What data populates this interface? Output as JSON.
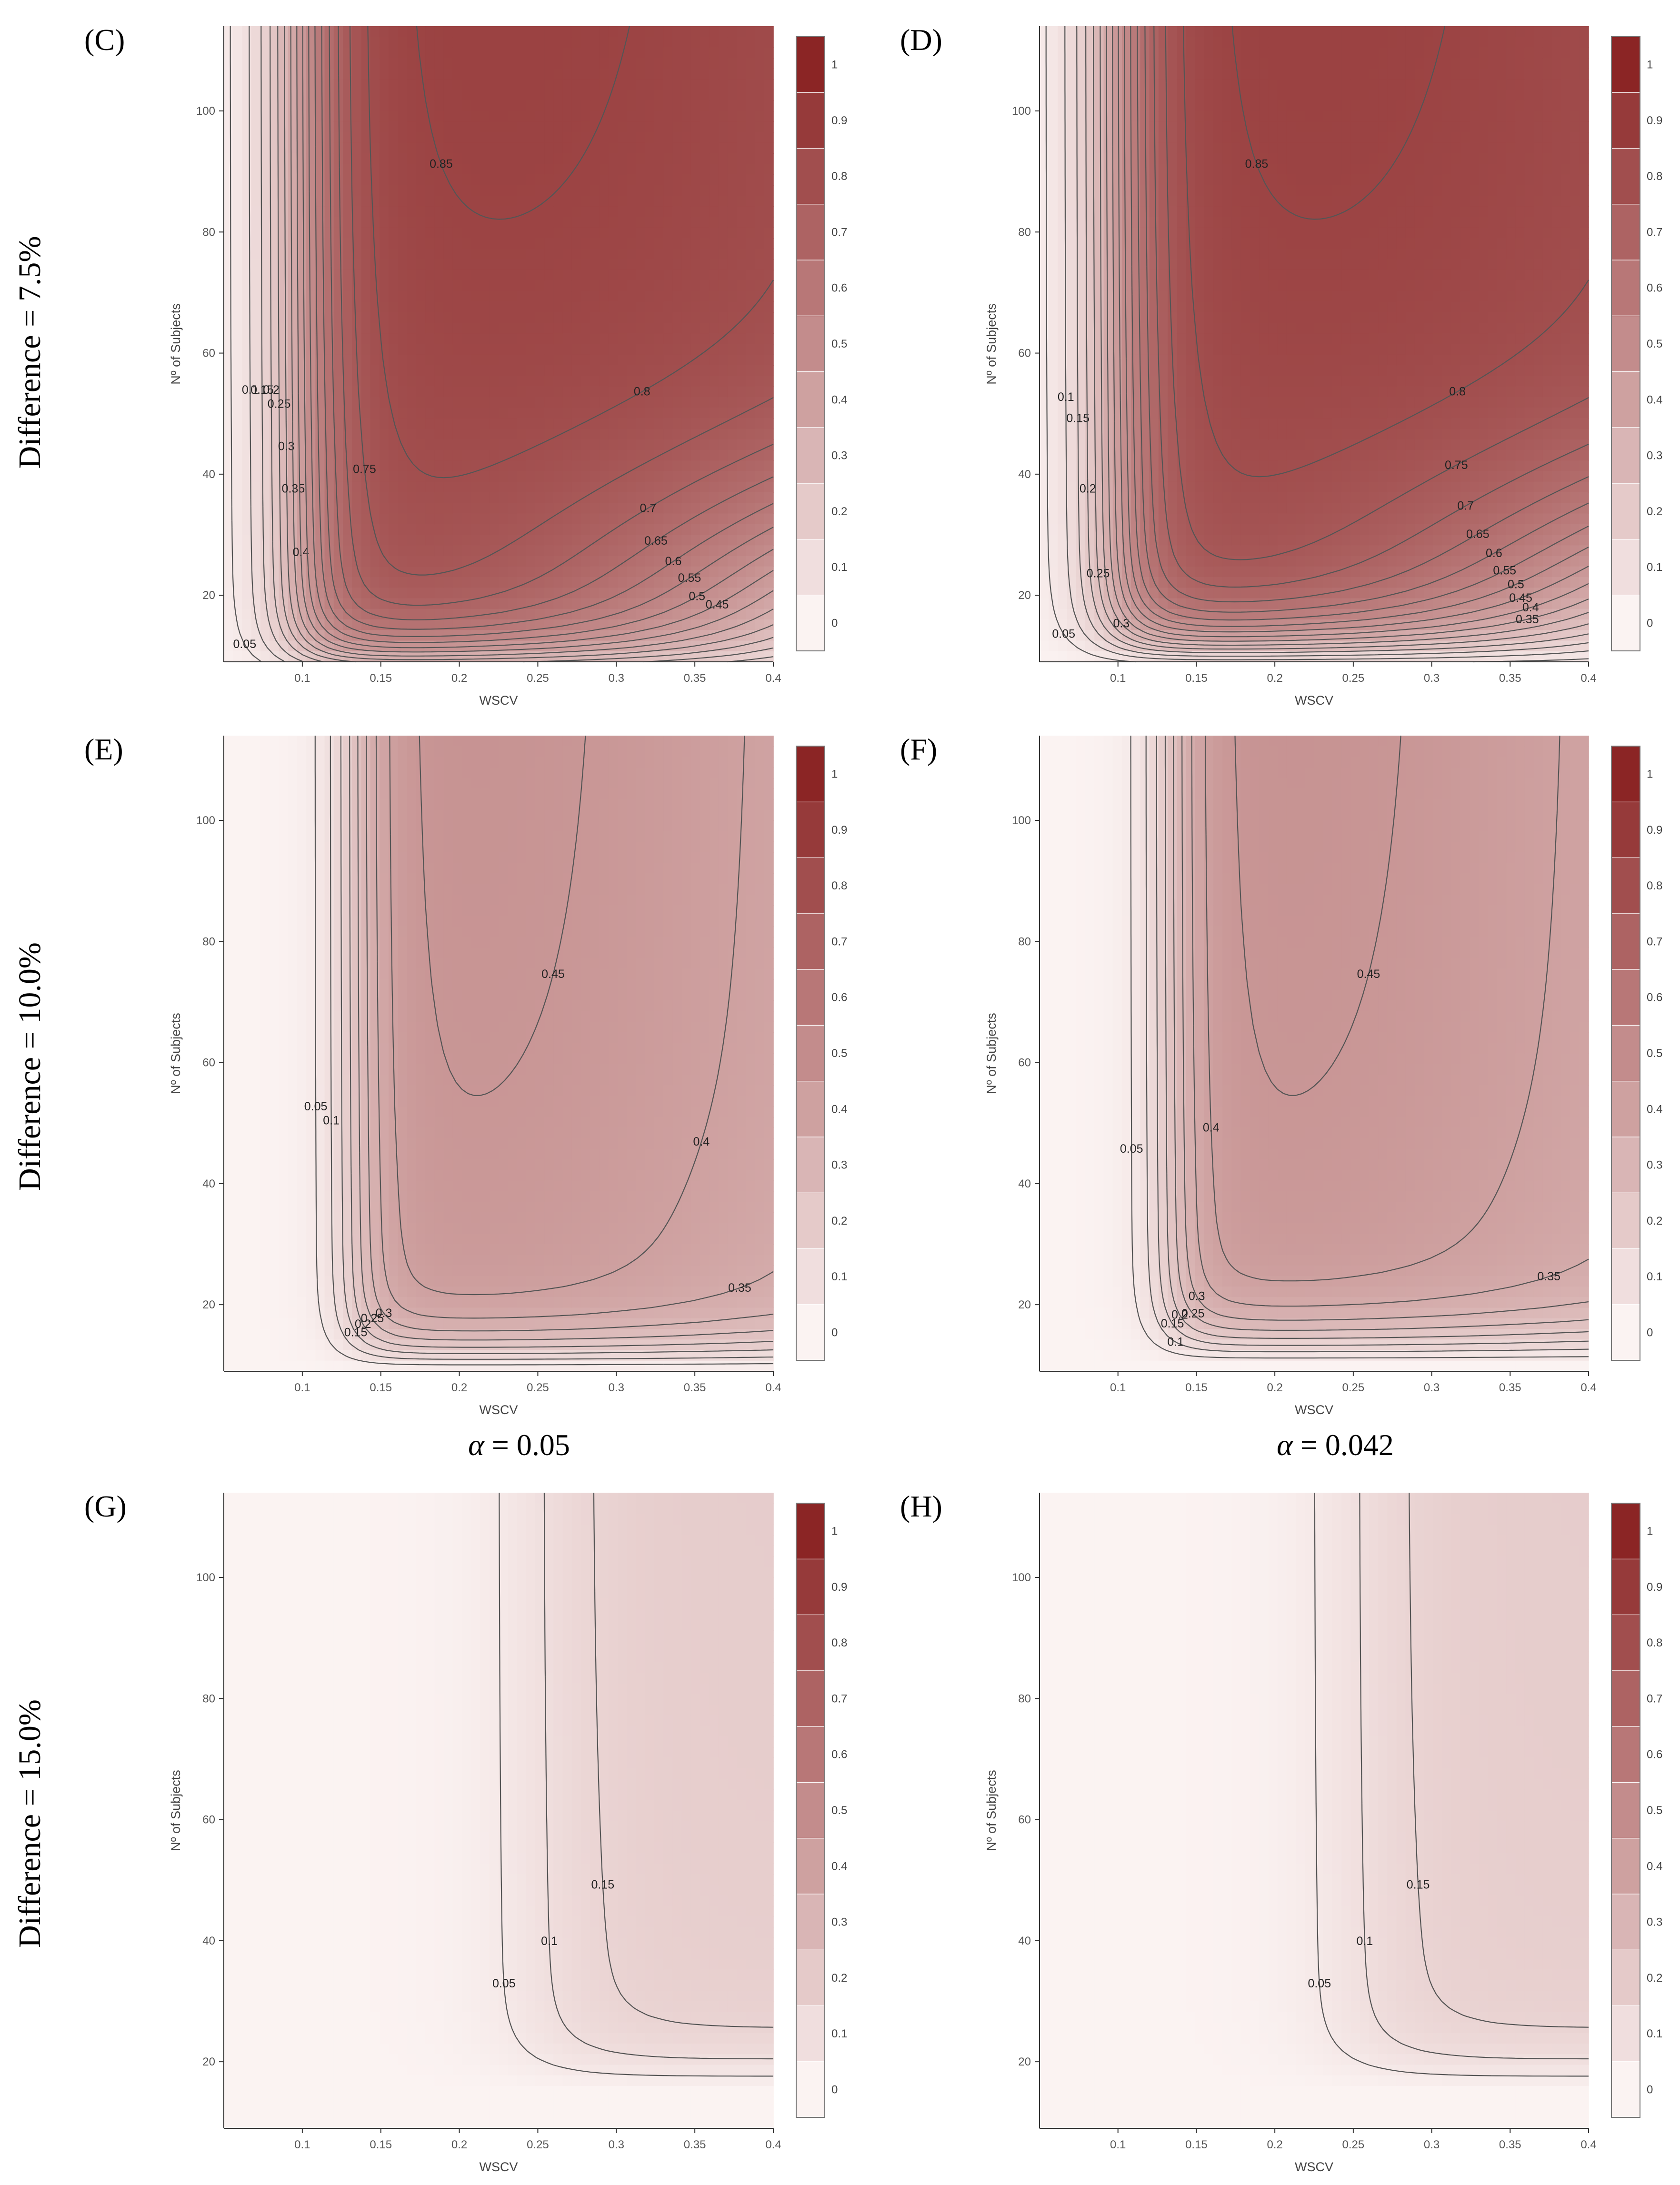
{
  "figure": {
    "row_labels": [
      "Difference = 7.5%",
      "Difference = 10.0%",
      "Difference = 15.0%"
    ],
    "alpha_labels": {
      "left": {
        "sym": "α",
        "text": " = 0.05"
      },
      "right": {
        "sym": "α",
        "text": " = 0.042"
      }
    }
  },
  "colors": {
    "low": "#fbf3f2",
    "high": "#8b2525",
    "contour": "#555555"
  },
  "colorbar": {
    "ticks": [
      "1",
      "0.9",
      "0.8",
      "0.7",
      "0.6",
      "0.5",
      "0.4",
      "0.3",
      "0.2",
      "0.1",
      "0"
    ]
  },
  "chart_data": [
    {
      "panel": "(C)",
      "letter": "C",
      "type": "heatmap",
      "xlabel": "WSCV",
      "ylabel": "Nº of Subjects",
      "xlim": [
        0.05,
        0.4
      ],
      "ylim": [
        9,
        114
      ],
      "xticks": [
        "0.1",
        "0.15",
        "0.2",
        "0.25",
        "0.3",
        "0.35",
        "0.4"
      ],
      "yticks": [
        "20",
        "40",
        "60",
        "80",
        "100"
      ],
      "colorbar_range": [
        0,
        1
      ],
      "params": {
        "A": 0.87,
        "N0": 6,
        "W0": 0.098,
        "s": 0.016,
        "p": 0.55,
        "c": 0.5,
        "Wo": 0.22,
        "q": 2.2,
        "sig": 0.45,
        "B": 0.95
      },
      "contour_levels": [
        "0.05",
        "0.1",
        "0.15",
        "0.2",
        "0.25",
        "0.3",
        "0.35",
        "0.4",
        "0.45",
        "0.5",
        "0.55",
        "0.6",
        "0.65",
        "0.7",
        "0.75",
        "0.8",
        "0.85"
      ]
    },
    {
      "panel": "(D)",
      "letter": "D",
      "type": "heatmap",
      "xlabel": "WSCV",
      "ylabel": "Nº of Subjects",
      "xlim": [
        0.05,
        0.4
      ],
      "ylim": [
        9,
        114
      ],
      "xticks": [
        "0.1",
        "0.15",
        "0.2",
        "0.25",
        "0.3",
        "0.35",
        "0.4"
      ],
      "yticks": [
        "20",
        "40",
        "60",
        "80",
        "100"
      ],
      "colorbar_range": [
        0,
        1
      ],
      "params": {
        "A": 0.87,
        "N0": 8,
        "W0": 0.098,
        "s": 0.016,
        "p": 0.62,
        "c": 0.5,
        "Wo": 0.22,
        "q": 2.2,
        "sig": 0.45,
        "B": 0.95
      },
      "contour_levels": [
        "0.05",
        "0.1",
        "0.15",
        "0.2",
        "0.25",
        "0.3",
        "0.35",
        "0.4",
        "0.45",
        "0.5",
        "0.55",
        "0.6",
        "0.65",
        "0.7",
        "0.75",
        "0.8",
        "0.85"
      ]
    },
    {
      "panel": "(E)",
      "letter": "E",
      "type": "heatmap",
      "xlabel": "WSCV",
      "ylabel": "Nº of Subjects",
      "xlim": [
        0.05,
        0.4
      ],
      "ylim": [
        9,
        114
      ],
      "xticks": [
        "0.1",
        "0.15",
        "0.2",
        "0.25",
        "0.3",
        "0.35",
        "0.4"
      ],
      "yticks": [
        "20",
        "40",
        "60",
        "80",
        "100"
      ],
      "colorbar_range": [
        0,
        1
      ],
      "params": {
        "A": 0.47,
        "N0": 9,
        "W0": 0.133,
        "s": 0.012,
        "p": 0.55,
        "c": 0.45,
        "Wo": 0.2,
        "q": 3,
        "sig": 0.25,
        "B": 0.1
      },
      "contour_levels": [
        "0.05",
        "0.1",
        "0.15",
        "0.2",
        "0.25",
        "0.3",
        "0.35",
        "0.4",
        "0.45"
      ]
    },
    {
      "panel": "(F)",
      "letter": "F",
      "type": "heatmap",
      "xlabel": "WSCV",
      "ylabel": "Nº of Subjects",
      "xlim": [
        0.05,
        0.4
      ],
      "ylim": [
        9,
        114
      ],
      "xticks": [
        "0.1",
        "0.15",
        "0.2",
        "0.25",
        "0.3",
        "0.35",
        "0.4"
      ],
      "yticks": [
        "20",
        "40",
        "60",
        "80",
        "100"
      ],
      "colorbar_range": [
        0,
        1
      ],
      "params": {
        "A": 0.47,
        "N0": 10,
        "W0": 0.133,
        "s": 0.012,
        "p": 0.62,
        "c": 0.45,
        "Wo": 0.2,
        "q": 3,
        "sig": 0.25,
        "B": 0.1
      },
      "contour_levels": [
        "0.05",
        "0.1",
        "0.15",
        "0.2",
        "0.25",
        "0.3",
        "0.35",
        "0.4",
        "0.45"
      ]
    },
    {
      "panel": "(G)",
      "letter": "G",
      "type": "heatmap",
      "xlabel": "WSCV",
      "ylabel": "Nº of Subjects",
      "xlim": [
        0.05,
        0.4
      ],
      "ylim": [
        9,
        114
      ],
      "xticks": [
        "0.1",
        "0.15",
        "0.2",
        "0.25",
        "0.3",
        "0.35",
        "0.4"
      ],
      "yticks": [
        "20",
        "40",
        "60",
        "80",
        "100"
      ],
      "colorbar_range": [
        0,
        1
      ],
      "params": {
        "A": 0.19,
        "N0": 15,
        "W0": 0.25,
        "s": 0.025,
        "p": 0.6,
        "c": 0.5,
        "Wo": 0.4,
        "q": 2,
        "sig": 0.65,
        "B": 0
      },
      "contour_levels": [
        "0.05",
        "0.1",
        "0.15"
      ]
    },
    {
      "panel": "(H)",
      "letter": "H",
      "type": "heatmap",
      "xlabel": "WSCV",
      "ylabel": "Nº of Subjects",
      "xlim": [
        0.05,
        0.4
      ],
      "ylim": [
        9,
        114
      ],
      "xticks": [
        "0.1",
        "0.15",
        "0.2",
        "0.25",
        "0.3",
        "0.35",
        "0.4"
      ],
      "yticks": [
        "20",
        "40",
        "60",
        "80",
        "100"
      ],
      "colorbar_range": [
        0,
        1
      ],
      "params": {
        "A": 0.19,
        "N0": 15,
        "W0": 0.25,
        "s": 0.025,
        "p": 0.6,
        "c": 0.5,
        "Wo": 0.4,
        "q": 2,
        "sig": 0.65,
        "B": 0
      },
      "contour_levels": [
        "0.05",
        "0.1",
        "0.15"
      ]
    }
  ]
}
